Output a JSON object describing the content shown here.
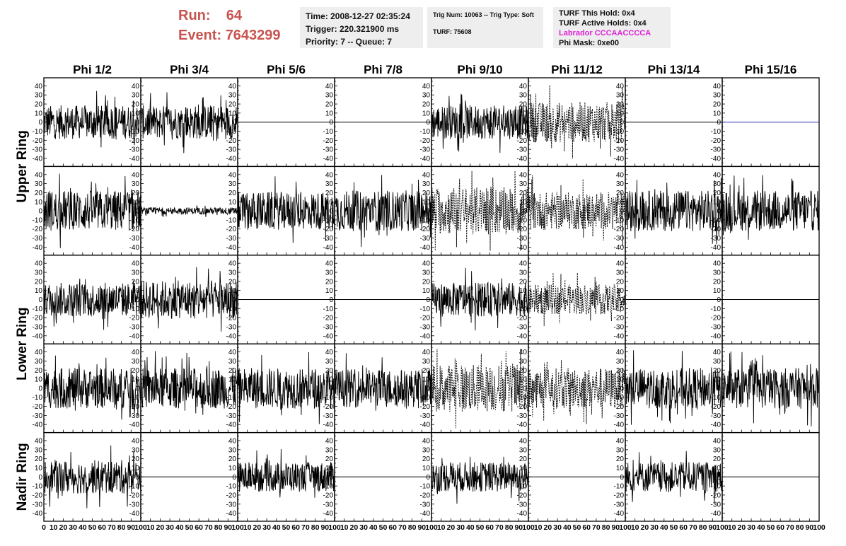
{
  "header": {
    "run_label": "Run:",
    "run_value": "64",
    "event_label": "Event:",
    "event_value": "7643299",
    "time": "Time: 2008-12-27 02:35:24",
    "trigger": "Trigger: 220.321900 ms",
    "priority": "Priority: 7 -- Queue: 7",
    "trig_num": "Trig Num: 10063 -- Trig Type: Soft",
    "turf": "TURF: 75608",
    "turf_this_hold": "TURF This Hold: 0x4",
    "turf_active_holds": "TURF Active Holds: 0x4",
    "labrador": "Labrador CCCAACCCCA",
    "phi_mask": "Phi Mask: 0xe00",
    "labrador_color": "#e020d8",
    "run_color": "#c8544f"
  },
  "chart_data": {
    "type": "line",
    "columns": [
      "Phi 1/2",
      "Phi 3/4",
      "Phi 5/6",
      "Phi 7/8",
      "Phi 9/10",
      "Phi 11/12",
      "Phi 13/14",
      "Phi 15/16"
    ],
    "ring_labels": [
      {
        "label": "Upper Ring",
        "rows": [
          0,
          1
        ]
      },
      {
        "label": "Lower Ring",
        "rows": [
          2,
          3
        ]
      },
      {
        "label": "Nadir Ring",
        "rows": [
          4
        ]
      }
    ],
    "ylim": [
      -45,
      45
    ],
    "y_ticks": [
      -40,
      -30,
      -20,
      -10,
      0,
      10,
      20,
      30,
      40
    ],
    "xlim": [
      0,
      100
    ],
    "x_ticks": [
      0,
      10,
      20,
      30,
      40,
      50,
      60,
      70,
      80,
      90,
      100
    ],
    "samples_per_trace": 260,
    "grid": false,
    "panels": [
      [
        "noise-25",
        "noise-25",
        "flat",
        "flat",
        "noise-25",
        "dashed-30",
        "flat",
        "flat-blue"
      ],
      [
        "noise-30",
        "noise-5",
        "noise-28",
        "noise-30",
        "dashed-35",
        "dashed-28",
        "noise-30",
        "noise-30"
      ],
      [
        "noise-25",
        "noise-28",
        "flat",
        "flat",
        "noise-25",
        "dashed-22",
        "flat",
        "flat"
      ],
      [
        "noise-30",
        "noise-30",
        "noise-30",
        "noise-28",
        "dashed-35",
        "dashed-30",
        "noise-30",
        "noise-30"
      ],
      [
        "noise-25",
        "flat",
        "noise-22",
        "flat",
        "noise-22",
        "flat",
        "noise-22",
        "flat"
      ]
    ],
    "trace_color": "#000000",
    "flat_blue_color": "#3030c0"
  }
}
